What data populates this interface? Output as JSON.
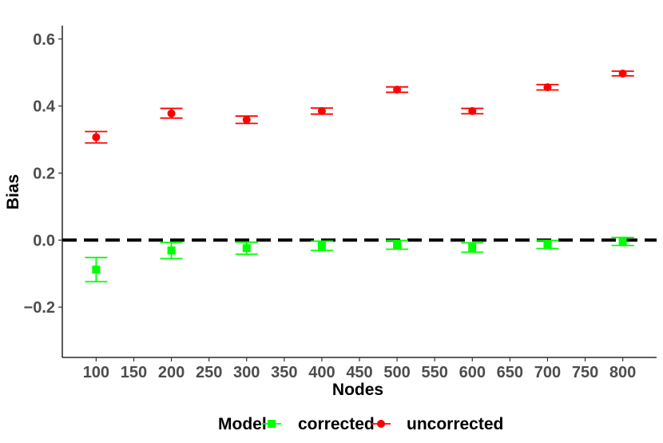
{
  "chart_data": {
    "type": "scatter",
    "title": "",
    "xlabel": "Nodes",
    "ylabel": "Bias",
    "xlim": [
      55,
      845
    ],
    "ylim": [
      -0.35,
      0.64
    ],
    "x_ticks": [
      100,
      150,
      200,
      250,
      300,
      350,
      400,
      450,
      500,
      550,
      600,
      650,
      700,
      750,
      800
    ],
    "x_tick_labels": [
      "100",
      "150",
      "200",
      "250",
      "300",
      "350",
      "400",
      "450",
      "500",
      "550",
      "600",
      "650",
      "700",
      "750",
      "800"
    ],
    "y_ticks": [
      -0.2,
      0.0,
      0.2,
      0.4,
      0.6
    ],
    "y_tick_labels": [
      "−0.2",
      "0.0",
      "0.2",
      "0.4",
      "0.6"
    ],
    "reference_line": {
      "y": 0.0,
      "style": "dashed",
      "color": "#000000"
    },
    "grid": false,
    "legend": {
      "title": "Model",
      "position": "bottom"
    },
    "series": [
      {
        "name": "corrected",
        "color": "#00ff00",
        "marker": "square",
        "points": [
          {
            "x": 100,
            "y": -0.088,
            "low": -0.124,
            "high": -0.052
          },
          {
            "x": 200,
            "y": -0.031,
            "low": -0.055,
            "high": -0.007
          },
          {
            "x": 300,
            "y": -0.024,
            "low": -0.042,
            "high": -0.006
          },
          {
            "x": 400,
            "y": -0.017,
            "low": -0.031,
            "high": -0.003
          },
          {
            "x": 500,
            "y": -0.014,
            "low": -0.027,
            "high": -0.001
          },
          {
            "x": 600,
            "y": -0.022,
            "low": -0.036,
            "high": -0.008
          },
          {
            "x": 700,
            "y": -0.013,
            "low": -0.025,
            "high": -0.001
          },
          {
            "x": 800,
            "y": -0.004,
            "low": -0.016,
            "high": 0.008
          }
        ]
      },
      {
        "name": "uncorrected",
        "color": "#ff0000",
        "marker": "circle",
        "points": [
          {
            "x": 100,
            "y": 0.307,
            "low": 0.29,
            "high": 0.324
          },
          {
            "x": 200,
            "y": 0.378,
            "low": 0.364,
            "high": 0.393
          },
          {
            "x": 300,
            "y": 0.359,
            "low": 0.348,
            "high": 0.37
          },
          {
            "x": 400,
            "y": 0.385,
            "low": 0.376,
            "high": 0.394
          },
          {
            "x": 500,
            "y": 0.449,
            "low": 0.441,
            "high": 0.457
          },
          {
            "x": 600,
            "y": 0.385,
            "low": 0.377,
            "high": 0.393
          },
          {
            "x": 700,
            "y": 0.456,
            "low": 0.448,
            "high": 0.464
          },
          {
            "x": 800,
            "y": 0.497,
            "low": 0.49,
            "high": 0.504
          }
        ]
      }
    ]
  }
}
